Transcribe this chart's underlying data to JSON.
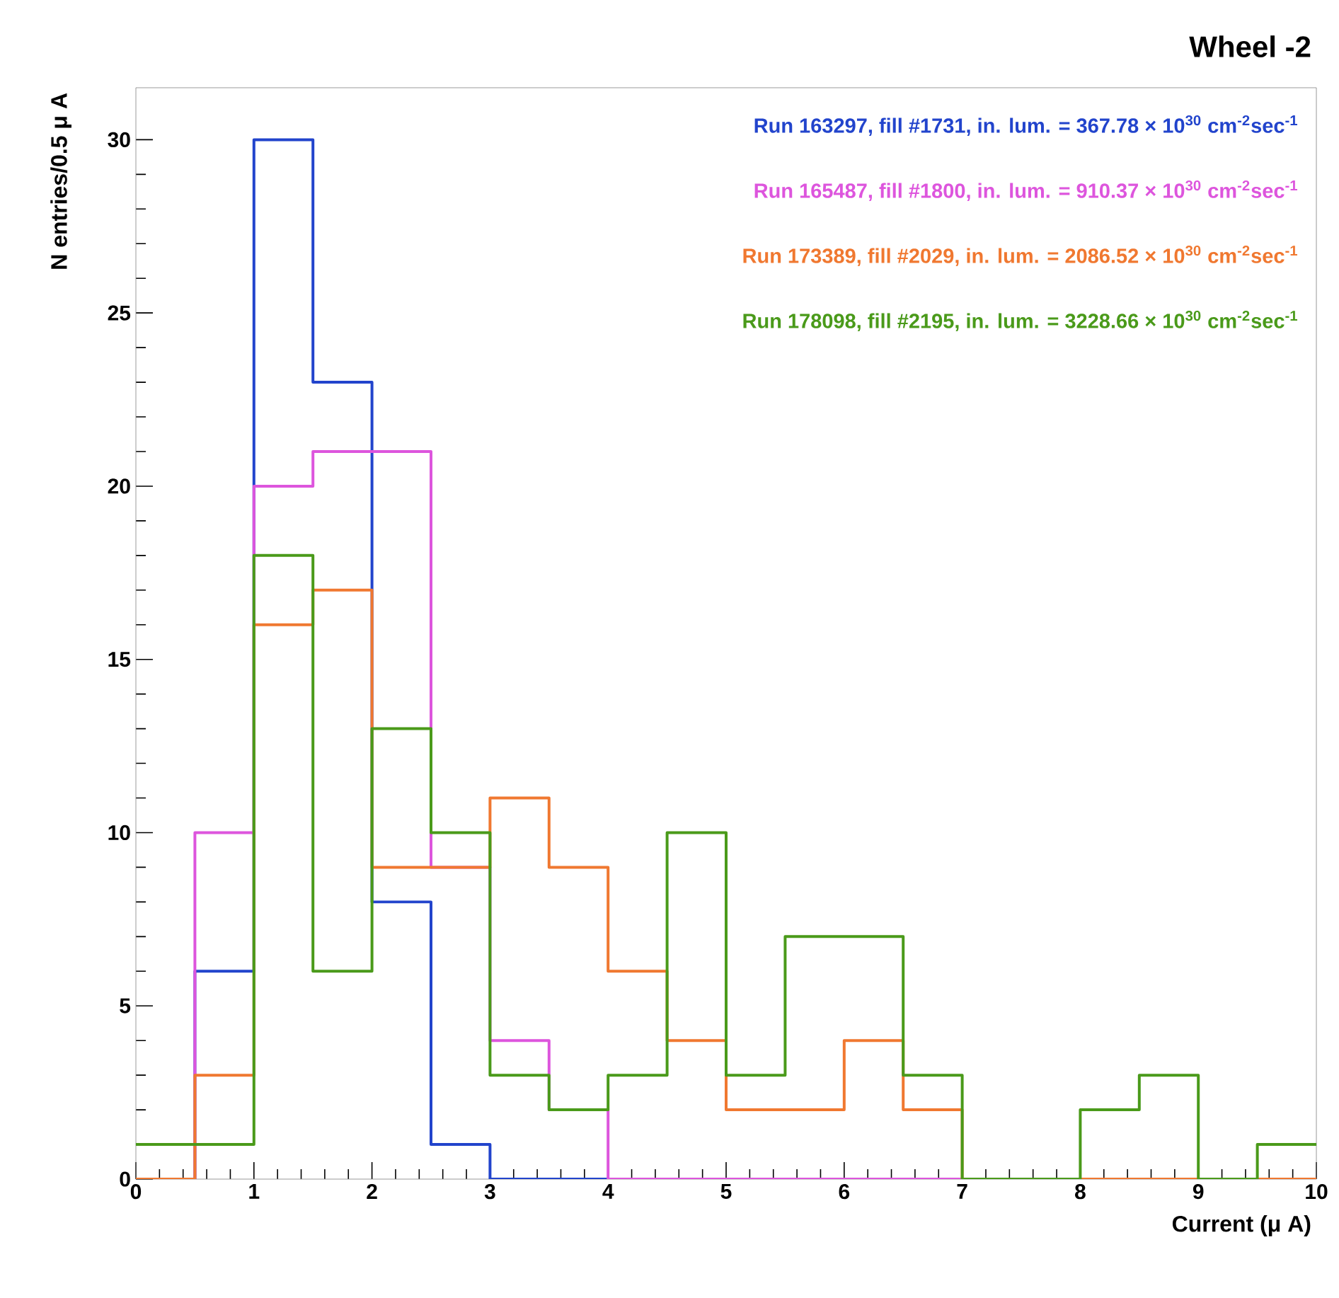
{
  "chart_data": {
    "type": "histogram",
    "title": "Wheel -2",
    "xlabel": "Current (μ A)",
    "ylabel": "N entries/0.5 μ A",
    "bins": [
      0,
      0.5,
      1,
      1.5,
      2,
      2.5,
      3,
      3.5,
      4,
      4.5,
      5,
      5.5,
      6,
      6.5,
      7,
      7.5,
      8,
      8.5,
      9,
      9.5,
      10
    ],
    "series": [
      {
        "name": "Run 163297, fill #1731, in. lum. = 367.78 × 10$^{30}$ cm$^{-2}$sec$^{-1}$",
        "color": "#2244cc",
        "values": [
          0,
          6,
          30,
          23,
          8,
          1,
          0,
          0,
          0,
          0,
          0,
          0,
          0,
          0,
          0,
          0,
          0,
          0,
          0,
          0
        ]
      },
      {
        "name": "Run 165487, fill #1800, in. lum. = 910.37 × 10$^{30}$ cm$^{-2}$sec$^{-1}$",
        "color": "#dd55dd",
        "values": [
          0,
          10,
          20,
          21,
          21,
          9,
          4,
          2,
          0,
          0,
          0,
          0,
          0,
          0,
          0,
          0,
          0,
          0,
          0,
          0
        ]
      },
      {
        "name": "Run 173389, fill #2029, in. lum. = 2086.52 × 10$^{30}$ cm$^{-2}$sec$^{-1}$",
        "color": "#f07830",
        "values": [
          0,
          3,
          16,
          17,
          9,
          9,
          11,
          9,
          6,
          4,
          2,
          2,
          4,
          2,
          0,
          0,
          0,
          0,
          0,
          0
        ]
      },
      {
        "name": "Run 178098, fill #2195, in. lum. = 3228.66 × 10$^{30}$ cm$^{-2}$sec$^{-1}$",
        "color": "#4a9a1a",
        "values": [
          1,
          1,
          18,
          6,
          13,
          10,
          3,
          2,
          3,
          10,
          3,
          7,
          7,
          3,
          0,
          0,
          2,
          3,
          0,
          1
        ]
      }
    ],
    "xlim": [
      0,
      10
    ],
    "xticks": [
      0,
      1,
      2,
      3,
      4,
      5,
      6,
      7,
      8,
      9,
      10
    ],
    "ylim": [
      0,
      31.5
    ],
    "yticks": [
      0,
      5,
      10,
      15,
      20,
      25,
      30
    ],
    "grid": false,
    "legend": "top right"
  }
}
